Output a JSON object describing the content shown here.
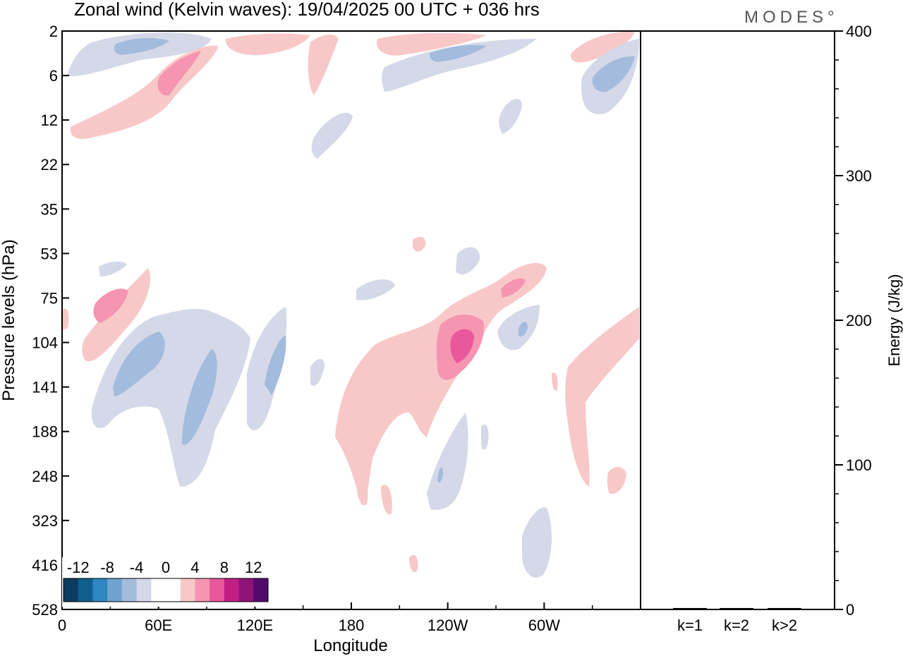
{
  "chart_data": {
    "type": "heatmap",
    "title": "Zonal wind (Kelvin waves):  19/04/2025  00 UTC  + 036 hrs",
    "xlabel": "Longitude",
    "ylabel": "Pressure levels (hPa)",
    "y2label": "Energy (J/kg)",
    "x_ticks": [
      "0",
      "60E",
      "120E",
      "180",
      "120W",
      "60W"
    ],
    "y_ticks": [
      "2",
      "6",
      "12",
      "22",
      "35",
      "53",
      "75",
      "104",
      "141",
      "188",
      "248",
      "323",
      "416",
      "528"
    ],
    "y2_ticks": [
      "0",
      "100",
      "200",
      "300",
      "400"
    ],
    "y2lim": [
      0,
      400
    ],
    "energy_bars": {
      "categories": [
        "k=1",
        "k=2",
        "k>2"
      ],
      "values": [
        0.5,
        0.5,
        0.5
      ]
    },
    "colorbar": {
      "labels": [
        "-12",
        "-8",
        "-4",
        "0",
        "4",
        "8",
        "12"
      ],
      "colors": [
        "#0b3b5e",
        "#0f5f8f",
        "#2f86c0",
        "#6fa3cf",
        "#a3bbdc",
        "#d4d8e8",
        "#ffffff",
        "#ffffff",
        "#f8c8c8",
        "#f595b2",
        "#e8589a",
        "#c21f84",
        "#8e1478",
        "#520a6b"
      ]
    },
    "contours": [
      {
        "level": -4,
        "color": "#d4d8e8",
        "region": "upper stratosphere, 10E-60E",
        "x": [
          25,
          60
        ],
        "y_levels": [
          "2",
          "6"
        ]
      },
      {
        "level": -8,
        "color": "#a3bbdc",
        "region": "upper stratosphere, 40W-30W",
        "x": [
          320,
          345
        ],
        "y_levels": [
          "6",
          "12"
        ]
      },
      {
        "level": 4,
        "color": "#f8c8c8",
        "region": "stratosphere band 5E-85E",
        "x": [
          5,
          85
        ],
        "y_levels": [
          "6",
          "12"
        ]
      },
      {
        "level": 8,
        "color": "#e8589a",
        "region": "jet core near 125W",
        "x": [
          230,
          245
        ],
        "y_levels": [
          "104",
          "141"
        ]
      },
      {
        "level": -4,
        "color": "#a3bbdc",
        "region": "lower stratosphere 30E-120E",
        "x": [
          30,
          125
        ],
        "y_levels": [
          "104",
          "248"
        ]
      },
      {
        "level": 4,
        "color": "#f8c8c8",
        "region": "tropopause 170E-60W",
        "x": [
          170,
          320
        ],
        "y_levels": [
          "104",
          "323"
        ]
      }
    ]
  },
  "logo": "MODES°"
}
